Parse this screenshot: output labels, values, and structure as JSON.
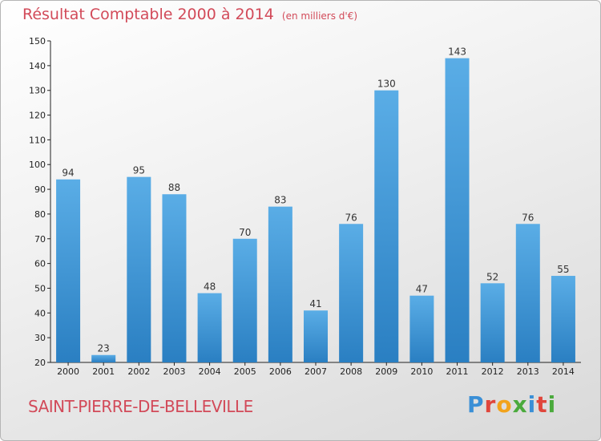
{
  "chart_data": {
    "type": "bar",
    "title": "Résultat Comptable 2000 à 2014",
    "subtitle": "(en milliers d'€)",
    "xlabel": "",
    "ylabel": "",
    "categories": [
      "2000",
      "2001",
      "2002",
      "2003",
      "2004",
      "2005",
      "2006",
      "2007",
      "2008",
      "2009",
      "2010",
      "2011",
      "2012",
      "2013",
      "2014"
    ],
    "values": [
      94,
      23,
      95,
      88,
      48,
      70,
      83,
      41,
      76,
      130,
      47,
      143,
      52,
      76,
      55
    ],
    "ylim": [
      20,
      150
    ],
    "yticks": [
      20,
      30,
      40,
      50,
      60,
      70,
      80,
      90,
      100,
      110,
      120,
      130,
      140,
      150
    ],
    "grid": false,
    "legend": "none",
    "bar_color_top": "#5aade6",
    "bar_color_bottom": "#2a7fc2"
  },
  "footer": {
    "town": "SAINT-PIERRE-DE-BELLEVILLE",
    "logo_letters": [
      {
        "ch": "P",
        "color": "#3a8fd6"
      },
      {
        "ch": "r",
        "color": "#e0463c"
      },
      {
        "ch": "o",
        "color": "#f2a31b"
      },
      {
        "ch": "x",
        "color": "#4aaa3c"
      },
      {
        "ch": "i",
        "color": "#3a8fd6"
      },
      {
        "ch": "t",
        "color": "#e0463c"
      },
      {
        "ch": "i",
        "color": "#4aaa3c"
      }
    ]
  },
  "colors": {
    "title": "#d24a59",
    "axis": "#222222"
  }
}
